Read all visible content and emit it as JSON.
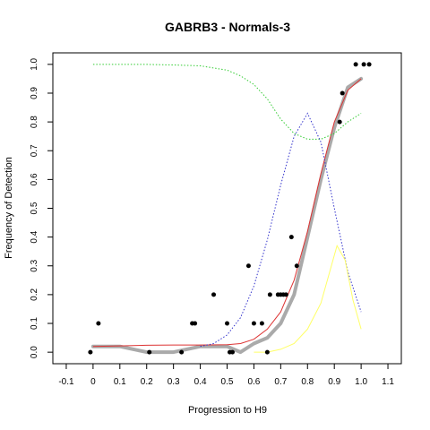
{
  "chart_data": {
    "type": "scatter",
    "title": "GABRB3 - Normals-3",
    "xlabel": "Progression to H9",
    "ylabel": "Frequency of Detection",
    "xlim": [
      -0.15,
      1.15
    ],
    "ylim": [
      -0.04,
      1.04
    ],
    "x_ticks": [
      "-0.1",
      "0",
      "0.1",
      "0.2",
      "0.3",
      "0.4",
      "0.5",
      "0.6",
      "0.7",
      "0.8",
      "0.9",
      "1.0",
      "1.1"
    ],
    "x_tick_values": [
      -0.1,
      0,
      0.1,
      0.2,
      0.3,
      0.4,
      0.5,
      0.6,
      0.7,
      0.8,
      0.9,
      1.0,
      1.1
    ],
    "y_ticks": [
      "0.0",
      "0.1",
      "0.2",
      "0.3",
      "0.4",
      "0.5",
      "0.6",
      "0.7",
      "0.8",
      "0.9",
      "1.0"
    ],
    "y_tick_values": [
      0,
      0.1,
      0.2,
      0.3,
      0.4,
      0.5,
      0.6,
      0.7,
      0.8,
      0.9,
      1.0
    ],
    "grid": false,
    "legend": "none",
    "series": [
      {
        "kind": "points",
        "color": "#000000",
        "x": [
          -0.01,
          0.02,
          0.21,
          0.33,
          0.37,
          0.38,
          0.45,
          0.5,
          0.51,
          0.52,
          0.58,
          0.6,
          0.63,
          0.65,
          0.66,
          0.69,
          0.7,
          0.71,
          0.72,
          0.74,
          0.76,
          0.92,
          0.93,
          0.98,
          1.01,
          1.03
        ],
        "y": [
          0,
          0.1,
          0,
          0,
          0.1,
          0.1,
          0.2,
          0.1,
          0,
          0,
          0.3,
          0.1,
          0.1,
          0,
          0.2,
          0.2,
          0.2,
          0.2,
          0.2,
          0.4,
          0.3,
          0.8,
          0.9,
          1.0,
          1.0,
          1.0
        ]
      },
      {
        "kind": "band",
        "color": "#aaaaaa",
        "x": [
          0.0,
          0.1,
          0.2,
          0.3,
          0.4,
          0.5,
          0.55,
          0.6,
          0.65,
          0.7,
          0.75,
          0.8,
          0.85,
          0.9,
          0.95,
          1.0
        ],
        "y": [
          0.02,
          0.02,
          0.0,
          0.0,
          0.02,
          0.02,
          0.0,
          0.03,
          0.05,
          0.1,
          0.2,
          0.4,
          0.6,
          0.78,
          0.92,
          0.95
        ]
      },
      {
        "kind": "line",
        "color": "#dd3333",
        "x": [
          0.0,
          0.1,
          0.2,
          0.3,
          0.4,
          0.5,
          0.55,
          0.6,
          0.65,
          0.7,
          0.75,
          0.8,
          0.85,
          0.9,
          0.95,
          1.0
        ],
        "y": [
          0.02,
          0.022,
          0.024,
          0.025,
          0.025,
          0.026,
          0.03,
          0.045,
          0.08,
          0.14,
          0.25,
          0.42,
          0.62,
          0.8,
          0.91,
          0.95
        ]
      },
      {
        "kind": "line",
        "color": "#33cc33",
        "dashed": true,
        "x": [
          0.0,
          0.1,
          0.2,
          0.3,
          0.4,
          0.5,
          0.55,
          0.6,
          0.65,
          0.7,
          0.75,
          0.8,
          0.85,
          0.9,
          0.95,
          1.0
        ],
        "y": [
          1.0,
          1.0,
          1.0,
          0.998,
          0.995,
          0.98,
          0.96,
          0.93,
          0.88,
          0.81,
          0.76,
          0.74,
          0.74,
          0.76,
          0.8,
          0.83
        ]
      },
      {
        "kind": "line",
        "color": "#3333cc",
        "dashed": true,
        "x": [
          0.4,
          0.45,
          0.5,
          0.55,
          0.6,
          0.65,
          0.7,
          0.75,
          0.8,
          0.85,
          0.9,
          0.95,
          1.0
        ],
        "y": [
          0.02,
          0.03,
          0.06,
          0.12,
          0.23,
          0.39,
          0.58,
          0.75,
          0.83,
          0.73,
          0.5,
          0.28,
          0.14
        ]
      },
      {
        "kind": "line",
        "color": "#ffff66",
        "x": [
          0.6,
          0.65,
          0.7,
          0.75,
          0.8,
          0.85,
          0.88,
          0.91,
          0.94,
          0.97,
          1.0
        ],
        "y": [
          0.0,
          0.0,
          0.01,
          0.03,
          0.08,
          0.17,
          0.27,
          0.37,
          0.32,
          0.18,
          0.08
        ]
      }
    ]
  }
}
